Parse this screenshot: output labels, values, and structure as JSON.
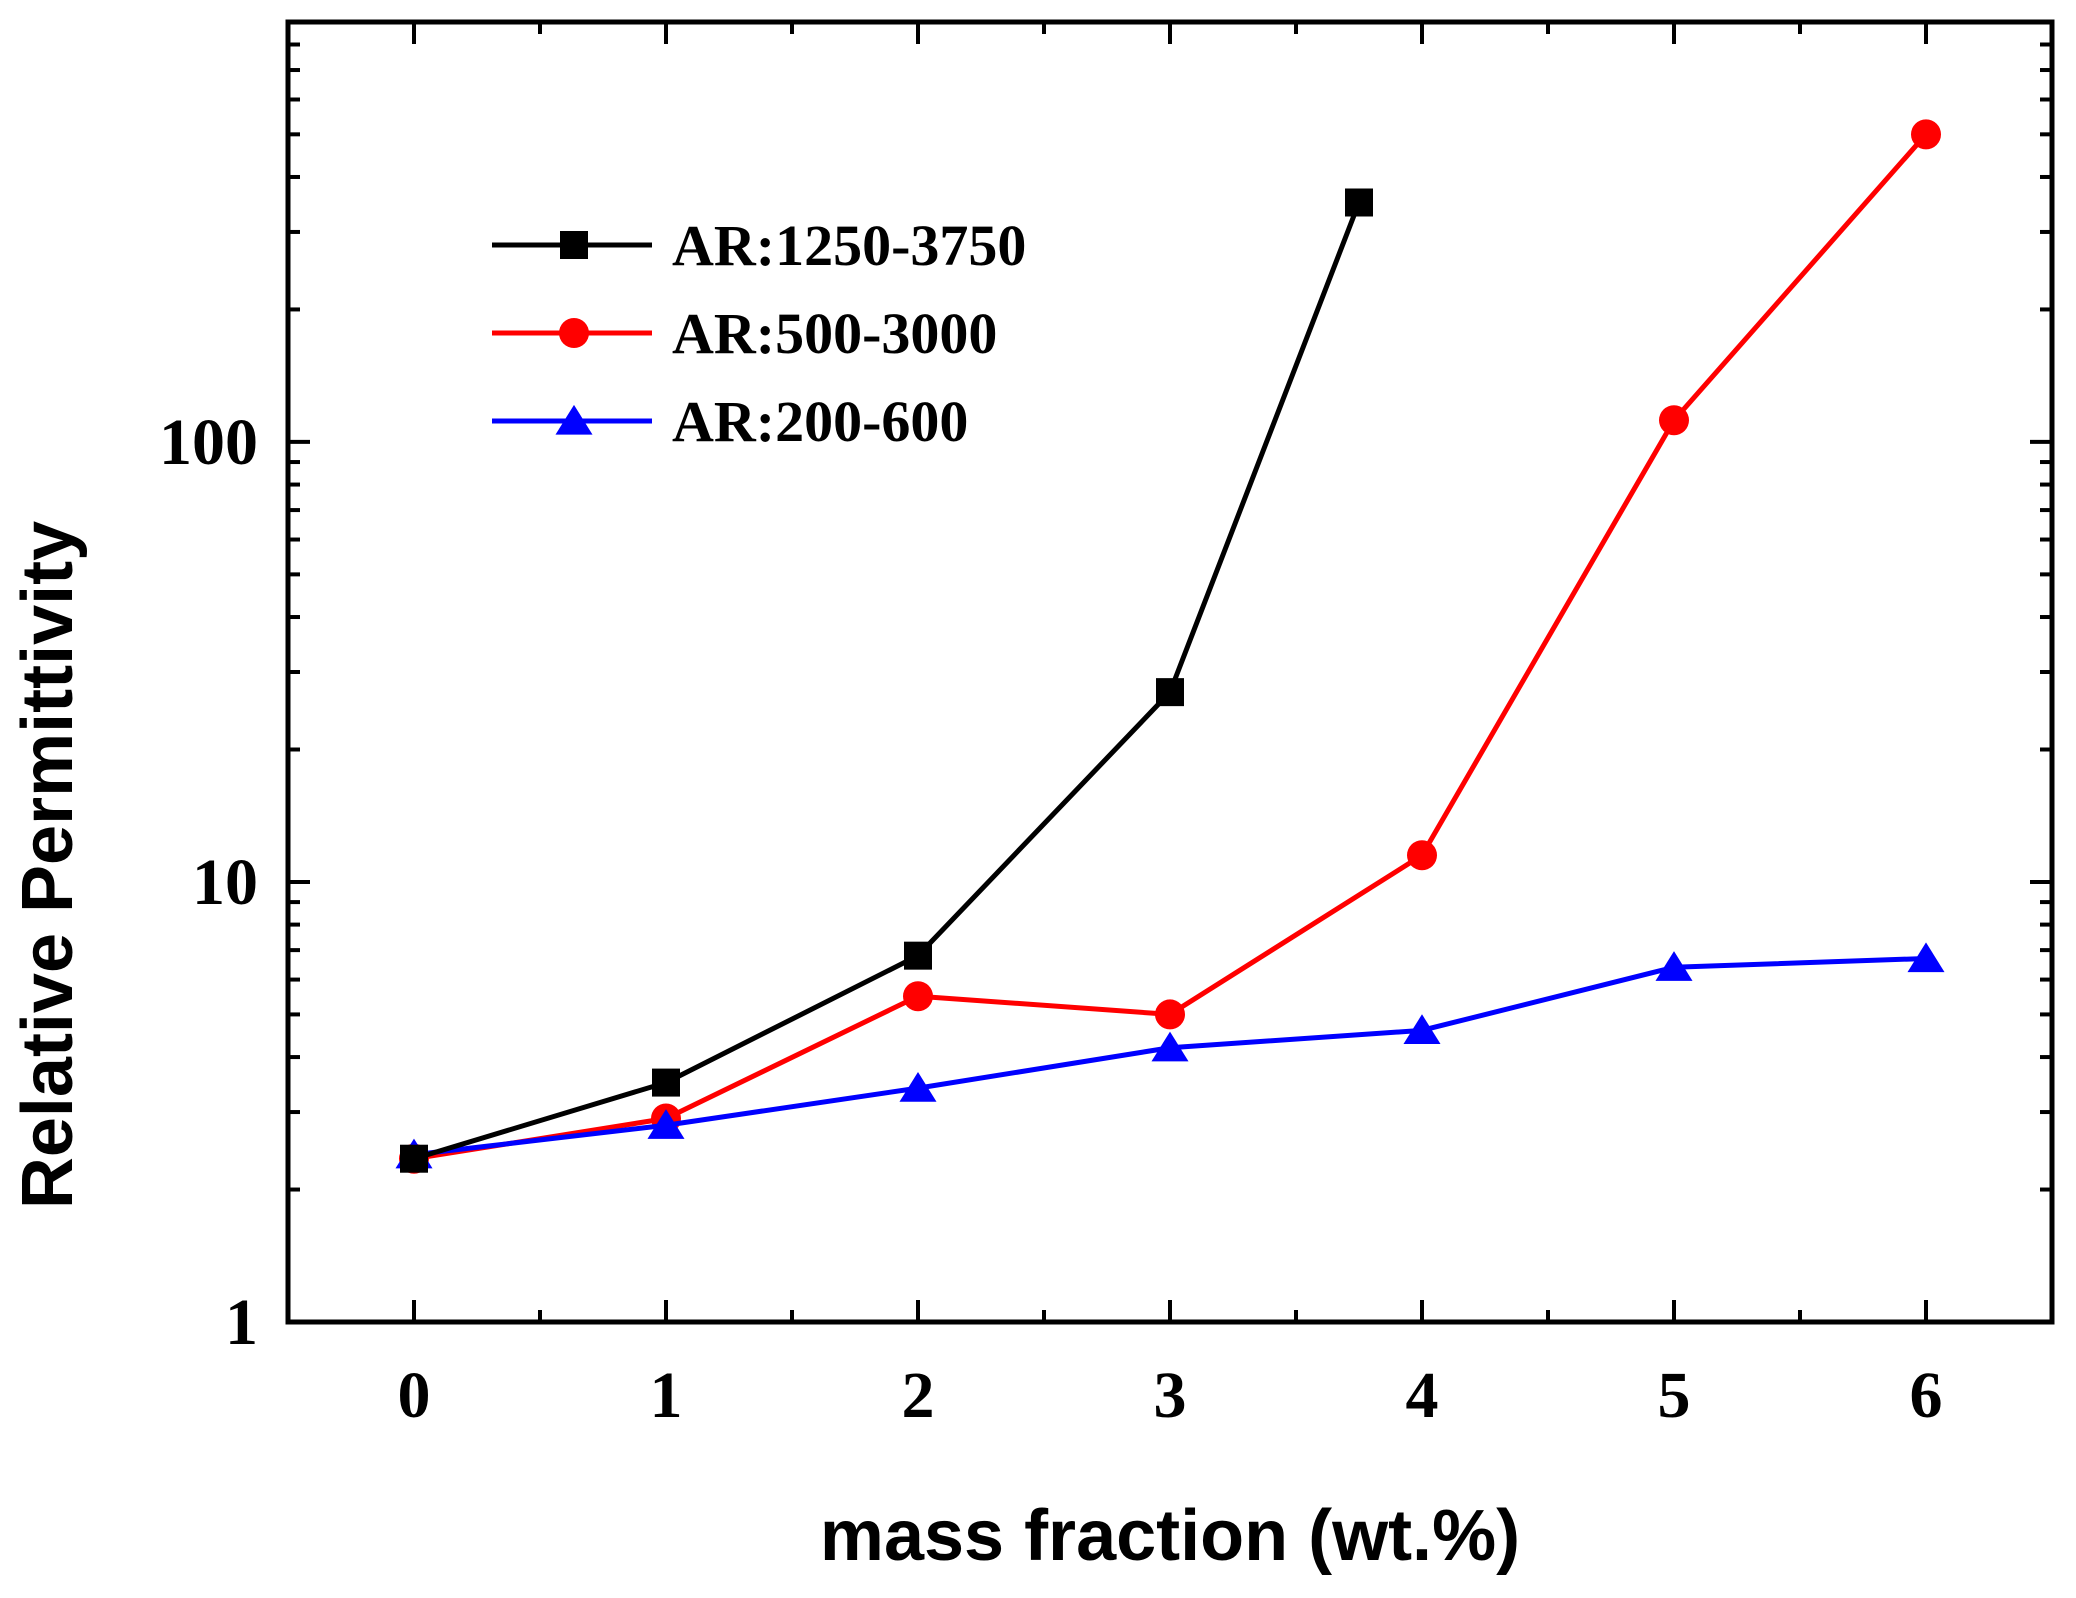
{
  "chart_data": {
    "type": "line",
    "title": "",
    "xlabel": "mass fraction (wt.%)",
    "ylabel": "Relative Permittivity",
    "xlim": [
      -0.5,
      6.5
    ],
    "ylim": [
      1,
      900
    ],
    "yscale": "log",
    "xticks": [
      0,
      1,
      2,
      3,
      4,
      5,
      6
    ],
    "xtick_labels": [
      "0",
      "1",
      "2",
      "3",
      "4",
      "5",
      "6"
    ],
    "yticks": [
      1,
      10,
      100
    ],
    "ytick_labels": [
      "1",
      "10",
      "100"
    ],
    "grid": false,
    "legend_position": "top-left",
    "series": [
      {
        "name": "AR:1250-3750",
        "color": "#000000",
        "marker": "square",
        "x": [
          0,
          1,
          2,
          3,
          3.75
        ],
        "y": [
          2.35,
          3.5,
          6.8,
          27,
          350
        ]
      },
      {
        "name": "AR:500-3000",
        "color": "#ff0000",
        "marker": "circle",
        "x": [
          0,
          1,
          2,
          3,
          4,
          5,
          6
        ],
        "y": [
          2.35,
          2.9,
          5.5,
          5.0,
          11.5,
          112,
          500
        ]
      },
      {
        "name": "AR:200-600",
        "color": "#0000ff",
        "marker": "triangle",
        "x": [
          0,
          1,
          2,
          3,
          4,
          5,
          6
        ],
        "y": [
          2.4,
          2.8,
          3.4,
          4.2,
          4.6,
          6.4,
          6.7
        ]
      }
    ]
  }
}
